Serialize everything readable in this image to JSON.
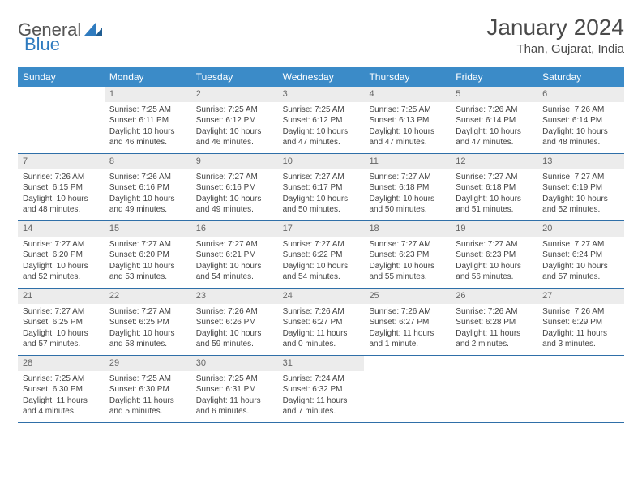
{
  "logo": {
    "textA": "General",
    "textB": "Blue"
  },
  "title": "January 2024",
  "location": "Than, Gujarat, India",
  "style": {
    "header_bg": "#3b8bc8",
    "header_text": "#ffffff",
    "daynum_bg": "#ececec",
    "daynum_text": "#666666",
    "row_border": "#2f6fa8",
    "body_text": "#444444",
    "page_bg": "#ffffff",
    "title_color": "#4a4a4a",
    "logo_gray": "#555555",
    "logo_blue": "#2f7bbf",
    "month_fontsize": 28,
    "location_fontsize": 15,
    "weekday_fontsize": 12,
    "daynum_fontsize": 11,
    "body_fontsize": 10
  },
  "weekdays": [
    "Sunday",
    "Monday",
    "Tuesday",
    "Wednesday",
    "Thursday",
    "Friday",
    "Saturday"
  ],
  "weeks": [
    [
      {
        "n": "",
        "sr": "",
        "ss": "",
        "dl": ""
      },
      {
        "n": "1",
        "sr": "Sunrise: 7:25 AM",
        "ss": "Sunset: 6:11 PM",
        "dl": "Daylight: 10 hours and 46 minutes."
      },
      {
        "n": "2",
        "sr": "Sunrise: 7:25 AM",
        "ss": "Sunset: 6:12 PM",
        "dl": "Daylight: 10 hours and 46 minutes."
      },
      {
        "n": "3",
        "sr": "Sunrise: 7:25 AM",
        "ss": "Sunset: 6:12 PM",
        "dl": "Daylight: 10 hours and 47 minutes."
      },
      {
        "n": "4",
        "sr": "Sunrise: 7:25 AM",
        "ss": "Sunset: 6:13 PM",
        "dl": "Daylight: 10 hours and 47 minutes."
      },
      {
        "n": "5",
        "sr": "Sunrise: 7:26 AM",
        "ss": "Sunset: 6:14 PM",
        "dl": "Daylight: 10 hours and 47 minutes."
      },
      {
        "n": "6",
        "sr": "Sunrise: 7:26 AM",
        "ss": "Sunset: 6:14 PM",
        "dl": "Daylight: 10 hours and 48 minutes."
      }
    ],
    [
      {
        "n": "7",
        "sr": "Sunrise: 7:26 AM",
        "ss": "Sunset: 6:15 PM",
        "dl": "Daylight: 10 hours and 48 minutes."
      },
      {
        "n": "8",
        "sr": "Sunrise: 7:26 AM",
        "ss": "Sunset: 6:16 PM",
        "dl": "Daylight: 10 hours and 49 minutes."
      },
      {
        "n": "9",
        "sr": "Sunrise: 7:27 AM",
        "ss": "Sunset: 6:16 PM",
        "dl": "Daylight: 10 hours and 49 minutes."
      },
      {
        "n": "10",
        "sr": "Sunrise: 7:27 AM",
        "ss": "Sunset: 6:17 PM",
        "dl": "Daylight: 10 hours and 50 minutes."
      },
      {
        "n": "11",
        "sr": "Sunrise: 7:27 AM",
        "ss": "Sunset: 6:18 PM",
        "dl": "Daylight: 10 hours and 50 minutes."
      },
      {
        "n": "12",
        "sr": "Sunrise: 7:27 AM",
        "ss": "Sunset: 6:18 PM",
        "dl": "Daylight: 10 hours and 51 minutes."
      },
      {
        "n": "13",
        "sr": "Sunrise: 7:27 AM",
        "ss": "Sunset: 6:19 PM",
        "dl": "Daylight: 10 hours and 52 minutes."
      }
    ],
    [
      {
        "n": "14",
        "sr": "Sunrise: 7:27 AM",
        "ss": "Sunset: 6:20 PM",
        "dl": "Daylight: 10 hours and 52 minutes."
      },
      {
        "n": "15",
        "sr": "Sunrise: 7:27 AM",
        "ss": "Sunset: 6:20 PM",
        "dl": "Daylight: 10 hours and 53 minutes."
      },
      {
        "n": "16",
        "sr": "Sunrise: 7:27 AM",
        "ss": "Sunset: 6:21 PM",
        "dl": "Daylight: 10 hours and 54 minutes."
      },
      {
        "n": "17",
        "sr": "Sunrise: 7:27 AM",
        "ss": "Sunset: 6:22 PM",
        "dl": "Daylight: 10 hours and 54 minutes."
      },
      {
        "n": "18",
        "sr": "Sunrise: 7:27 AM",
        "ss": "Sunset: 6:23 PM",
        "dl": "Daylight: 10 hours and 55 minutes."
      },
      {
        "n": "19",
        "sr": "Sunrise: 7:27 AM",
        "ss": "Sunset: 6:23 PM",
        "dl": "Daylight: 10 hours and 56 minutes."
      },
      {
        "n": "20",
        "sr": "Sunrise: 7:27 AM",
        "ss": "Sunset: 6:24 PM",
        "dl": "Daylight: 10 hours and 57 minutes."
      }
    ],
    [
      {
        "n": "21",
        "sr": "Sunrise: 7:27 AM",
        "ss": "Sunset: 6:25 PM",
        "dl": "Daylight: 10 hours and 57 minutes."
      },
      {
        "n": "22",
        "sr": "Sunrise: 7:27 AM",
        "ss": "Sunset: 6:25 PM",
        "dl": "Daylight: 10 hours and 58 minutes."
      },
      {
        "n": "23",
        "sr": "Sunrise: 7:26 AM",
        "ss": "Sunset: 6:26 PM",
        "dl": "Daylight: 10 hours and 59 minutes."
      },
      {
        "n": "24",
        "sr": "Sunrise: 7:26 AM",
        "ss": "Sunset: 6:27 PM",
        "dl": "Daylight: 11 hours and 0 minutes."
      },
      {
        "n": "25",
        "sr": "Sunrise: 7:26 AM",
        "ss": "Sunset: 6:27 PM",
        "dl": "Daylight: 11 hours and 1 minute."
      },
      {
        "n": "26",
        "sr": "Sunrise: 7:26 AM",
        "ss": "Sunset: 6:28 PM",
        "dl": "Daylight: 11 hours and 2 minutes."
      },
      {
        "n": "27",
        "sr": "Sunrise: 7:26 AM",
        "ss": "Sunset: 6:29 PM",
        "dl": "Daylight: 11 hours and 3 minutes."
      }
    ],
    [
      {
        "n": "28",
        "sr": "Sunrise: 7:25 AM",
        "ss": "Sunset: 6:30 PM",
        "dl": "Daylight: 11 hours and 4 minutes."
      },
      {
        "n": "29",
        "sr": "Sunrise: 7:25 AM",
        "ss": "Sunset: 6:30 PM",
        "dl": "Daylight: 11 hours and 5 minutes."
      },
      {
        "n": "30",
        "sr": "Sunrise: 7:25 AM",
        "ss": "Sunset: 6:31 PM",
        "dl": "Daylight: 11 hours and 6 minutes."
      },
      {
        "n": "31",
        "sr": "Sunrise: 7:24 AM",
        "ss": "Sunset: 6:32 PM",
        "dl": "Daylight: 11 hours and 7 minutes."
      },
      {
        "n": "",
        "sr": "",
        "ss": "",
        "dl": ""
      },
      {
        "n": "",
        "sr": "",
        "ss": "",
        "dl": ""
      },
      {
        "n": "",
        "sr": "",
        "ss": "",
        "dl": ""
      }
    ]
  ]
}
